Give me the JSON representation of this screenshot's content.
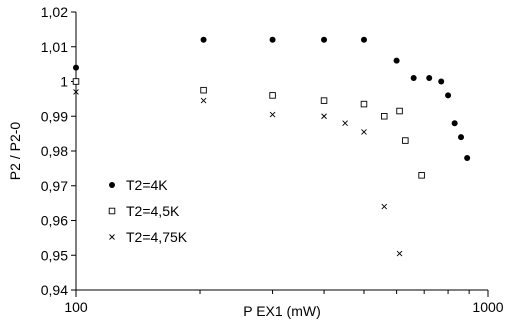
{
  "chart_data": {
    "type": "scatter",
    "xlabel": "P EX1 (mW)",
    "ylabel": "P2 / P2-0",
    "xscale": "log",
    "xlim": [
      100,
      1000
    ],
    "ylim": [
      0.94,
      1.02
    ],
    "x_ticks": [
      100,
      1000
    ],
    "x_tick_labels": [
      "100",
      "1000"
    ],
    "y_ticks": [
      0.94,
      0.95,
      0.96,
      0.97,
      0.98,
      0.99,
      1.0,
      1.01,
      1.02
    ],
    "y_tick_labels": [
      "0,94",
      "0,95",
      "0,96",
      "0,97",
      "0,98",
      "0,99",
      "1",
      "1,01",
      "1,02"
    ],
    "grid": false,
    "legend_position": "bottom-left",
    "series": [
      {
        "name": "T2=4K",
        "marker": "filled-circle",
        "color": "#000000",
        "x": [
          100,
          204,
          300,
          400,
          500,
          600,
          660,
          720,
          770,
          800,
          830,
          860,
          890
        ],
        "y": [
          1.004,
          1.012,
          1.012,
          1.012,
          1.012,
          1.006,
          1.001,
          1.001,
          1.0,
          0.996,
          0.988,
          0.984,
          0.978
        ]
      },
      {
        "name": "T2=4,5K",
        "marker": "open-square",
        "color": "#000000",
        "x": [
          100,
          204,
          300,
          400,
          500,
          560,
          610,
          630,
          690
        ],
        "y": [
          1.0,
          0.9975,
          0.996,
          0.9945,
          0.9935,
          0.99,
          0.9915,
          0.983,
          0.973
        ]
      },
      {
        "name": "T2=4,75K",
        "marker": "cross",
        "color": "#000000",
        "x": [
          100,
          204,
          300,
          400,
          450,
          500,
          560,
          610
        ],
        "y": [
          0.997,
          0.9945,
          0.9905,
          0.99,
          0.988,
          0.9855,
          0.964,
          0.9505
        ]
      }
    ]
  }
}
